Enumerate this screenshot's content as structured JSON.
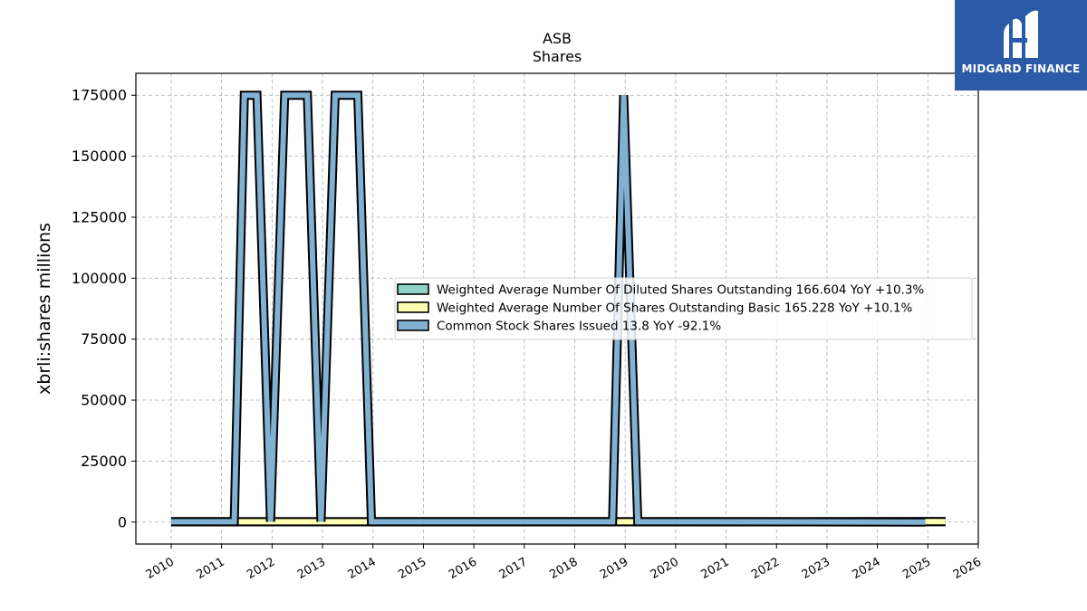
{
  "chart_data": {
    "type": "line",
    "title": "ASB",
    "subtitle": "Shares",
    "ylabel": "xbrli:shares millions",
    "xlabel": "",
    "xlim": [
      2009.3,
      2026.0
    ],
    "ylim": [
      -9000,
      184000
    ],
    "yticks": [
      0,
      25000,
      50000,
      75000,
      100000,
      125000,
      150000,
      175000
    ],
    "ytick_labels": [
      "0",
      "25000",
      "50000",
      "75000",
      "100000",
      "125000",
      "150000",
      "175000"
    ],
    "xticks": [
      2010,
      2011,
      2012,
      2013,
      2014,
      2015,
      2016,
      2017,
      2018,
      2019,
      2020,
      2021,
      2022,
      2023,
      2024,
      2025,
      2026
    ],
    "xtick_labels": [
      "2010",
      "2011",
      "2012",
      "2013",
      "2014",
      "2015",
      "2016",
      "2017",
      "2018",
      "2019",
      "2020",
      "2021",
      "2022",
      "2023",
      "2024",
      "2025",
      "2026"
    ],
    "grid": true,
    "legend_position": "center-right",
    "series": [
      {
        "name": "Weighted Average Number Of Diluted Shares Outstanding",
        "legend_label": "Weighted Average Number Of Diluted Shares Outstanding  166.604 YoY +10.3%",
        "color": "#8dd3c7",
        "x": [
          2010.0,
          2025.35
        ],
        "y": [
          140,
          167
        ]
      },
      {
        "name": "Weighted Average Number Of Shares Outstanding Basic",
        "legend_label": "Weighted Average Number Of Shares Outstanding Basic  165.228 YoY +10.1%",
        "color": "#ffffb3",
        "x": [
          2010.0,
          2025.35
        ],
        "y": [
          138,
          165
        ]
      },
      {
        "name": "Common Stock Shares Issued",
        "legend_label": "Common Stock Shares Issued  13.8 YoY -92.1%",
        "color": "#80b1d3",
        "x": [
          2010.0,
          2011.25,
          2011.45,
          2011.7,
          2011.97,
          2012.25,
          2012.7,
          2012.97,
          2013.25,
          2013.7,
          2013.97,
          2018.75,
          2018.97,
          2019.25,
          2024.95
        ],
        "y": [
          150,
          150,
          175000,
          175000,
          150,
          175000,
          175000,
          150,
          175000,
          175000,
          150,
          150,
          175000,
          150,
          14
        ]
      }
    ]
  },
  "logo": {
    "text": "MIDGARD FINANCE",
    "color": "#2a5aa8"
  }
}
